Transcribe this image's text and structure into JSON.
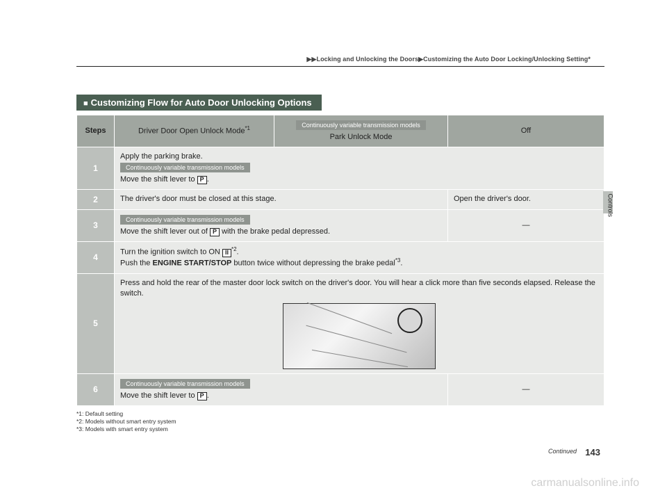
{
  "breadcrumb": {
    "p1": "Locking and Unlocking the Doors",
    "p2": "Customizing the Auto Door Locking/Unlocking Setting",
    "star": "*"
  },
  "section_title": "Customizing Flow for Auto Door Unlocking Options",
  "table": {
    "header": {
      "steps": "Steps",
      "col1": "Driver Door Open Unlock Mode",
      "col1_sup": "*1",
      "col2_badge": "Continuously variable transmission models",
      "col2": "Park Unlock Mode",
      "col3": "Off"
    },
    "rows": {
      "r1": {
        "n": "1",
        "line1": "Apply the parking brake.",
        "badge": "Continuously variable transmission models",
        "line2a": "Move the shift lever to ",
        "p": "P",
        "line2b": "."
      },
      "r2": {
        "n": "2",
        "left": "The driver's door must be closed at this stage.",
        "right": "Open the driver's door."
      },
      "r3": {
        "n": "3",
        "badge": "Continuously variable transmission models",
        "line_a": "Move the shift lever out of ",
        "p": "P",
        "line_b": " with the brake pedal depressed.",
        "dash": "—"
      },
      "r4": {
        "n": "4",
        "line1a": "Turn the ignition switch to ON ",
        "p": "II",
        "sup": "*2",
        "line1b": ".",
        "line2a": "Push the ",
        "bold": "ENGINE START/STOP",
        "line2b": " button twice without depressing the brake pedal",
        "sup2": "*3",
        "line2c": "."
      },
      "r5": {
        "n": "5",
        "text": "Press and hold the rear of the master door lock switch on the driver's door. You will hear a click more than five seconds elapsed. Release the switch."
      },
      "r6": {
        "n": "6",
        "badge": "Continuously variable transmission models",
        "line_a": "Move the shift lever to ",
        "p": "P",
        "line_b": ".",
        "dash": "—"
      }
    }
  },
  "footnotes": {
    "f1": "*1: Default setting",
    "f2": "*2: Models without smart entry system",
    "f3": "*3: Models with smart entry system"
  },
  "side_label": "Controls",
  "continued": "Continued",
  "page_num": "143",
  "watermark": "carmanualsonline.info"
}
